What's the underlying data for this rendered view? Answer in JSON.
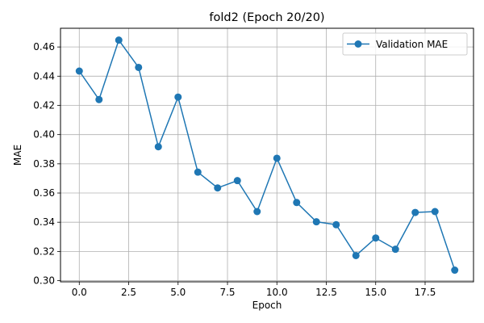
{
  "chart_data": {
    "type": "line",
    "title": "fold2 (Epoch 20/20)",
    "xlabel": "Epoch",
    "ylabel": "MAE",
    "xlim": [
      -0.95,
      19.95
    ],
    "ylim": [
      0.2992,
      0.4728
    ],
    "x_ticks": [
      0.0,
      2.5,
      5.0,
      7.5,
      10.0,
      12.5,
      15.0,
      17.5
    ],
    "x_tick_labels": [
      "0.0",
      "2.5",
      "5.0",
      "7.5",
      "10.0",
      "12.5",
      "15.0",
      "17.5"
    ],
    "y_ticks": [
      0.3,
      0.32,
      0.34,
      0.36,
      0.38,
      0.4,
      0.42,
      0.44,
      0.46
    ],
    "y_tick_labels": [
      "0.30",
      "0.32",
      "0.34",
      "0.36",
      "0.38",
      "0.40",
      "0.42",
      "0.44",
      "0.46"
    ],
    "grid": true,
    "legend_position": "top-right",
    "series": [
      {
        "name": "Validation MAE",
        "color": "#1f77b4",
        "marker": "circle",
        "x": [
          0,
          1,
          2,
          3,
          4,
          5,
          6,
          7,
          8,
          9,
          10,
          11,
          12,
          13,
          14,
          15,
          16,
          17,
          18,
          19
        ],
        "y": [
          0.4435,
          0.424,
          0.4647,
          0.446,
          0.3917,
          0.4257,
          0.3743,
          0.3635,
          0.3685,
          0.3473,
          0.3838,
          0.3535,
          0.3403,
          0.3383,
          0.3172,
          0.3292,
          0.3215,
          0.3467,
          0.3473,
          0.3072
        ]
      }
    ]
  }
}
